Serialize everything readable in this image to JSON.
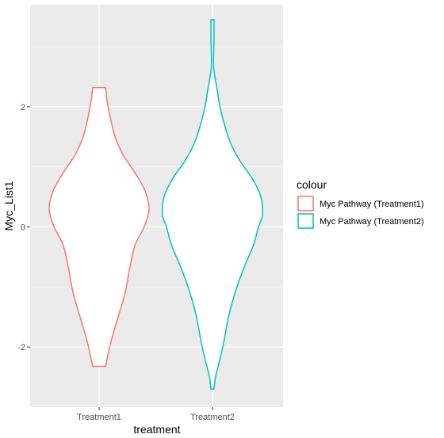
{
  "chart_data": {
    "type": "violin",
    "xlabel": "treatment",
    "ylabel": "Myc_List1",
    "categories": [
      "Treatment1",
      "Treatment2"
    ],
    "ylim": [
      -3.0,
      3.7
    ],
    "yticks": [
      -2,
      0,
      2
    ],
    "grid": true,
    "legend": {
      "title": "colour",
      "position": "right",
      "entries": [
        "Myc Pathway (Treatment1)",
        "Myc Pathway (Treatment2)"
      ]
    },
    "series": [
      {
        "name": "Myc Pathway (Treatment1)",
        "category": "Treatment1",
        "color": "#F8766D",
        "min": -2.32,
        "max": 2.32,
        "density_profile": [
          [
            -2.32,
            0.13
          ],
          [
            -2.2,
            0.16
          ],
          [
            -1.9,
            0.24
          ],
          [
            -1.5,
            0.38
          ],
          [
            -1.1,
            0.52
          ],
          [
            -0.7,
            0.61
          ],
          [
            -0.3,
            0.72
          ],
          [
            0.0,
            0.9
          ],
          [
            0.3,
            1.0
          ],
          [
            0.6,
            0.92
          ],
          [
            0.9,
            0.72
          ],
          [
            1.2,
            0.48
          ],
          [
            1.5,
            0.32
          ],
          [
            1.8,
            0.23
          ],
          [
            2.1,
            0.16
          ],
          [
            2.32,
            0.13
          ]
        ]
      },
      {
        "name": "Myc Pathway (Treatment2)",
        "category": "Treatment2",
        "color": "#00BFC4",
        "min": -2.7,
        "max": 3.45,
        "density_profile": [
          [
            -2.7,
            0.03
          ],
          [
            -2.5,
            0.06
          ],
          [
            -2.2,
            0.15
          ],
          [
            -1.9,
            0.23
          ],
          [
            -1.5,
            0.32
          ],
          [
            -1.1,
            0.45
          ],
          [
            -0.7,
            0.62
          ],
          [
            -0.3,
            0.82
          ],
          [
            0.0,
            0.92
          ],
          [
            0.2,
            1.0
          ],
          [
            0.5,
            0.97
          ],
          [
            0.8,
            0.8
          ],
          [
            1.1,
            0.55
          ],
          [
            1.4,
            0.36
          ],
          [
            1.7,
            0.24
          ],
          [
            2.0,
            0.15
          ],
          [
            2.3,
            0.09
          ],
          [
            2.6,
            0.03
          ],
          [
            2.8,
            0.02
          ],
          [
            3.1,
            0.03
          ],
          [
            3.45,
            0.03
          ]
        ]
      }
    ]
  }
}
